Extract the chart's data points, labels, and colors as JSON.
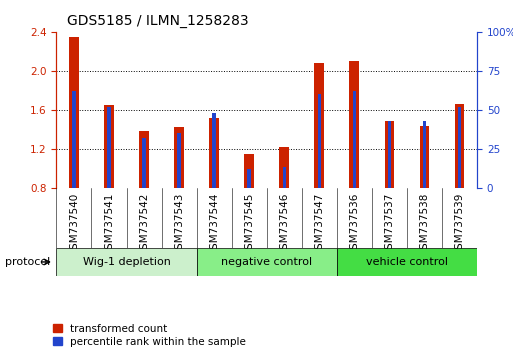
{
  "title": "GDS5185 / ILMN_1258283",
  "samples": [
    "GSM737540",
    "GSM737541",
    "GSM737542",
    "GSM737543",
    "GSM737544",
    "GSM737545",
    "GSM737546",
    "GSM737547",
    "GSM737536",
    "GSM737537",
    "GSM737538",
    "GSM737539"
  ],
  "red_values": [
    2.35,
    1.65,
    1.38,
    1.42,
    1.52,
    1.15,
    1.22,
    2.08,
    2.1,
    1.48,
    1.43,
    1.66
  ],
  "blue_values": [
    62,
    52,
    32,
    35,
    48,
    12,
    13,
    60,
    62,
    43,
    43,
    52
  ],
  "ylim_left": [
    0.8,
    2.4
  ],
  "ylim_right": [
    0,
    100
  ],
  "yticks_left": [
    0.8,
    1.2,
    1.6,
    2.0,
    2.4
  ],
  "yticks_right": [
    0,
    25,
    50,
    75,
    100
  ],
  "ytick_labels_right": [
    "0",
    "25",
    "50",
    "75",
    "100%"
  ],
  "red_color": "#cc2200",
  "blue_color": "#2244cc",
  "groups": [
    {
      "label": "Wig-1 depletion",
      "start": 0,
      "end": 4,
      "color": "#ccf0cc"
    },
    {
      "label": "negative control",
      "start": 4,
      "end": 8,
      "color": "#88ee88"
    },
    {
      "label": "vehicle control",
      "start": 8,
      "end": 12,
      "color": "#44dd44"
    }
  ],
  "red_bar_width": 0.28,
  "blue_bar_width": 0.1,
  "protocol_label": "protocol",
  "legend_items": [
    {
      "label": "transformed count",
      "color": "#cc2200"
    },
    {
      "label": "percentile rank within the sample",
      "color": "#2244cc"
    }
  ],
  "background_color": "#ffffff",
  "xlabel_area_color": "#cccccc",
  "title_fontsize": 10,
  "tick_fontsize": 7.5,
  "label_fontsize": 8
}
